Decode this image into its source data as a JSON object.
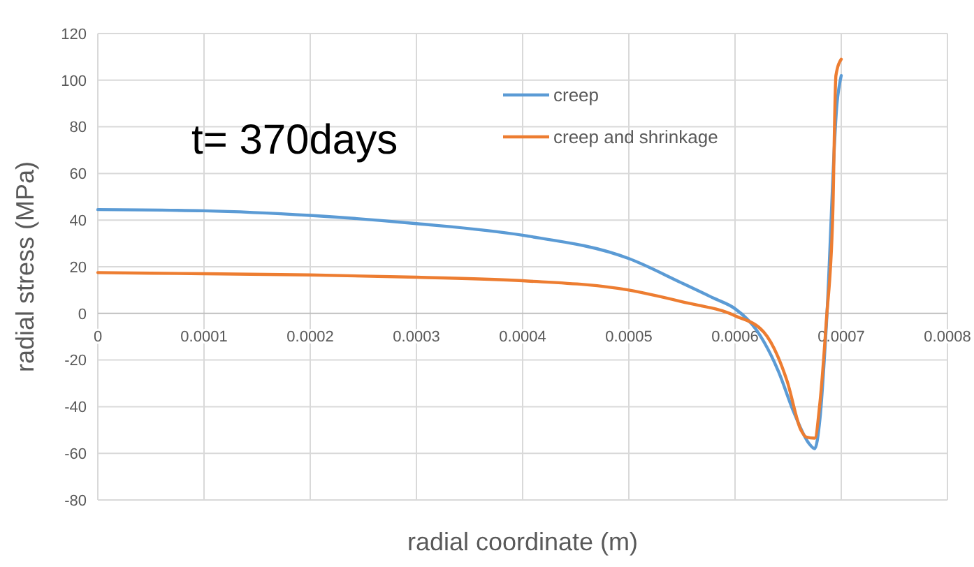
{
  "chart_data": {
    "type": "line",
    "xlabel": "radial coordinate (m)",
    "ylabel": "radial stress (MPa)",
    "annotations": [
      "t= 370days"
    ],
    "xlim": [
      0,
      0.0008
    ],
    "ylim": [
      -80,
      120
    ],
    "xticks": [
      0,
      0.0001,
      0.0002,
      0.0003,
      0.0004,
      0.0005,
      0.0006,
      0.0007,
      0.0008
    ],
    "yticks": [
      -80,
      -60,
      -40,
      -20,
      0,
      20,
      40,
      60,
      80,
      100,
      120
    ],
    "grid": true,
    "legend": "top right",
    "line_style": "solid",
    "series": [
      {
        "name": "creep",
        "color": "#5b9bd5",
        "x": [
          0,
          0.0001,
          0.0002,
          0.0003,
          0.0004,
          0.0005,
          0.00055,
          0.00058,
          0.0006,
          0.00062,
          0.000641,
          0.000655,
          0.00067,
          0.000675,
          0.00068,
          0.000686,
          0.000696,
          0.0007
        ],
        "values": [
          44.5,
          44,
          42,
          38.5,
          33.5,
          23.5,
          13,
          6.5,
          2,
          -7,
          -25,
          -42,
          -56,
          -58,
          -45,
          -5,
          90,
          102
        ]
      },
      {
        "name": "creep and shrinkage",
        "color": "#ed7d31",
        "x": [
          0,
          0.0001,
          0.0002,
          0.0003,
          0.0004,
          0.0005,
          0.00055,
          0.0006,
          0.000627,
          0.000649,
          0.000662,
          0.000667,
          0.000675,
          0.00068,
          0.000686,
          0.000692,
          0.000695,
          0.0007
        ],
        "values": [
          17.5,
          17,
          16.5,
          15.5,
          14,
          10,
          5,
          -1,
          -8,
          -29,
          -50,
          -53,
          -53.5,
          -38,
          -3,
          42,
          102,
          109
        ]
      }
    ]
  }
}
